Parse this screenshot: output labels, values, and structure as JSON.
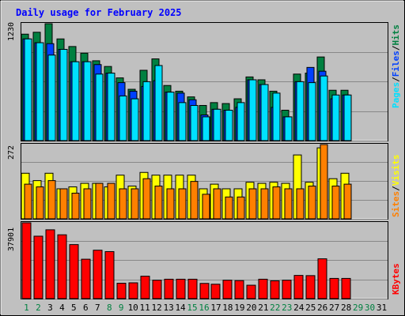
{
  "title": "Daily usage for February 2025",
  "colors": {
    "background": "#c0c0c0",
    "panel": "#c0c0c0",
    "grid": "#888888",
    "title": "#0000ff",
    "hits": "#008040",
    "files": "#0040ff",
    "pages": "#00e0ff",
    "visits": "#ffff00",
    "sites": "#ff8000",
    "kbytes": "#ff0000",
    "day_weekday": "#000000",
    "day_weekend": "#008040"
  },
  "legend": {
    "pages": "Pages",
    "files": "Files",
    "hits": "Hits",
    "visits": "Visits",
    "sites": "Sites",
    "kbytes": "KBytes",
    "separator": "/"
  },
  "chart_data": [
    {
      "type": "bar",
      "panel": "hits-files-pages",
      "max_label": "1230",
      "ylim": [
        0,
        1230
      ],
      "categories": [
        "1",
        "2",
        "3",
        "4",
        "5",
        "6",
        "7",
        "8",
        "9",
        "10",
        "11",
        "12",
        "13",
        "14",
        "15",
        "16",
        "17",
        "18",
        "19",
        "20",
        "21",
        "22",
        "23",
        "24",
        "25",
        "26",
        "27",
        "28",
        "29",
        "30",
        "31"
      ],
      "weekend_days": [
        "1",
        "2",
        "8",
        "9",
        "15",
        "16",
        "22",
        "23",
        "29",
        "30"
      ],
      "series": [
        {
          "name": "Hits",
          "values": [
            1120,
            1140,
            1230,
            1070,
            990,
            920,
            840,
            780,
            660,
            540,
            740,
            860,
            580,
            520,
            460,
            370,
            400,
            390,
            440,
            670,
            640,
            520,
            320,
            700,
            710,
            880,
            530,
            530,
            null,
            null,
            null
          ]
        },
        {
          "name": "Files",
          "values": [
            1070,
            1030,
            1020,
            960,
            830,
            830,
            800,
            710,
            610,
            520,
            570,
            630,
            510,
            500,
            430,
            270,
            330,
            320,
            350,
            640,
            590,
            350,
            250,
            620,
            770,
            730,
            440,
            480,
            null,
            null,
            null
          ]
        },
        {
          "name": "Pages",
          "values": [
            1070,
            1030,
            900,
            960,
            830,
            830,
            700,
            710,
            470,
            440,
            620,
            790,
            510,
            400,
            370,
            250,
            330,
            320,
            400,
            640,
            590,
            500,
            250,
            620,
            610,
            680,
            480,
            480,
            null,
            null,
            null
          ]
        }
      ]
    },
    {
      "type": "bar",
      "panel": "visits-sites",
      "max_label": "272",
      "ylim": [
        0,
        272
      ],
      "categories": [
        "1",
        "2",
        "3",
        "4",
        "5",
        "6",
        "7",
        "8",
        "9",
        "10",
        "11",
        "12",
        "13",
        "14",
        "15",
        "16",
        "17",
        "18",
        "19",
        "20",
        "21",
        "22",
        "23",
        "24",
        "25",
        "26",
        "27",
        "28",
        "29",
        "30",
        "31"
      ],
      "series": [
        {
          "name": "Visits",
          "values": [
            167,
            140,
            167,
            110,
            117,
            130,
            130,
            117,
            160,
            120,
            170,
            160,
            160,
            160,
            160,
            110,
            127,
            110,
            110,
            134,
            130,
            134,
            130,
            234,
            134,
            260,
            147,
            167,
            null,
            null,
            null
          ]
        },
        {
          "name": "Sites",
          "values": [
            127,
            117,
            140,
            110,
            94,
            110,
            130,
            130,
            110,
            110,
            147,
            120,
            110,
            110,
            137,
            90,
            110,
            80,
            80,
            110,
            110,
            117,
            110,
            110,
            120,
            272,
            120,
            127,
            null,
            null,
            null
          ]
        }
      ]
    },
    {
      "type": "bar",
      "panel": "kbytes",
      "max_label": "37901",
      "ylim": [
        0,
        37901
      ],
      "categories": [
        "1",
        "2",
        "3",
        "4",
        "5",
        "6",
        "7",
        "8",
        "9",
        "10",
        "11",
        "12",
        "13",
        "14",
        "15",
        "16",
        "17",
        "18",
        "19",
        "20",
        "21",
        "22",
        "23",
        "24",
        "25",
        "26",
        "27",
        "28",
        "29",
        "30",
        "31"
      ],
      "series": [
        {
          "name": "KBytes",
          "values": [
            37901,
            31200,
            34400,
            31900,
            27000,
            19700,
            24200,
            23500,
            7700,
            7900,
            11200,
            9200,
            9700,
            9700,
            9700,
            7600,
            7200,
            9200,
            9000,
            6700,
            9700,
            8900,
            9200,
            11600,
            11500,
            19900,
            10100,
            10100,
            null,
            null,
            null
          ]
        }
      ]
    }
  ]
}
